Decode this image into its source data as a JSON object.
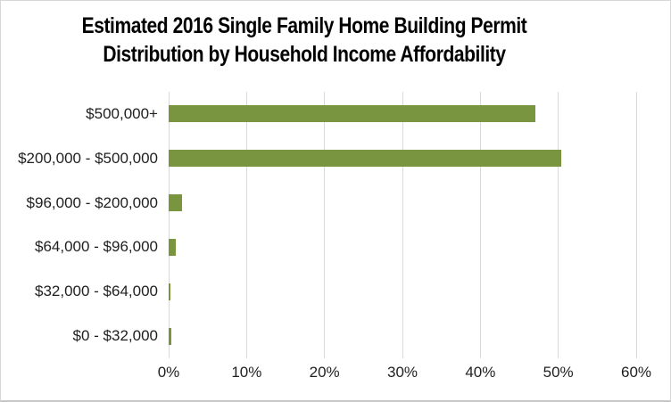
{
  "frame": {
    "background": "#FFFFFF",
    "border_color": "#D6D6D6"
  },
  "chart_data": {
    "type": "bar",
    "orientation": "horizontal",
    "title": "Estimated 2016 Single Family Home Building Permit Distribution by Household Income Affordability",
    "title_lines": [
      "Estimated 2016 Single Family Home Building Permit",
      "Distribution by Household Income Affordability"
    ],
    "categories": [
      "$500,000+",
      "$200,000 - $500,000",
      "$96,000 - $200,000",
      "$64,000 - $96,000",
      "$32,000 - $64,000",
      "$0 - $32,000"
    ],
    "values": [
      47.1,
      50.4,
      1.7,
      0.9,
      0.2,
      0.3
    ],
    "value_unit": "%",
    "xlabel": "",
    "ylabel": "",
    "xlim": [
      0,
      60
    ],
    "x_tick_values": [
      0,
      10,
      20,
      30,
      40,
      50,
      60
    ],
    "x_tick_labels": [
      "0%",
      "10%",
      "20%",
      "30%",
      "40%",
      "50%",
      "60%"
    ],
    "grid": "vertical gridlines at each x tick",
    "legend": "none",
    "colors": {
      "bar": "#7A953F",
      "gridline": "#D9D9D9",
      "axis_line": "#D9D9D9",
      "tick_text": "#1F1F1F",
      "category_text": "#1F1F1F",
      "title_text": "#000000"
    }
  }
}
